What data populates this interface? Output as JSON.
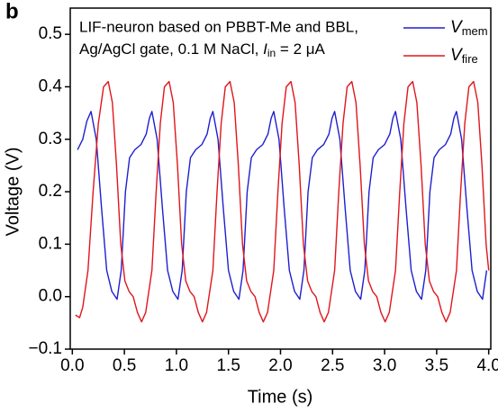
{
  "chart_data": {
    "type": "line",
    "panel_label": "b",
    "annotation": {
      "line1": "LIF-neuron based on PBBT-Me and BBL,",
      "line2": "Ag/AgCl gate, 0.1 M NaCl,",
      "symbol": "I",
      "symbol_sub": "in",
      "rest": "= 2 μA"
    },
    "xlabel": "Time (s)",
    "ylabel": "Voltage (V)",
    "xlim": [
      -0.02,
      4.02
    ],
    "ylim": [
      -0.1,
      0.55
    ],
    "xticks": [
      {
        "value": 0,
        "label": "0.0"
      },
      0.5,
      {
        "value": 1,
        "label": "1.0"
      },
      1.5,
      {
        "value": 2,
        "label": "2.0"
      },
      2.5,
      {
        "value": 3,
        "label": "3.0"
      },
      3.5,
      {
        "value": 4,
        "label": "4.0"
      }
    ],
    "yticks": [
      {
        "value": -0.1,
        "label": "−0.1"
      },
      {
        "value": 0,
        "label": "0.0"
      },
      0.1,
      0.2,
      0.3,
      0.4,
      0.5
    ],
    "legend": "upper right",
    "series": [
      {
        "name": "V",
        "name_sub": "mem",
        "color": "#1f1fd0",
        "x": [
          0.05,
          0.1,
          0.14,
          0.18,
          0.23,
          0.28,
          0.33,
          0.38,
          0.43,
          0.47,
          0.51,
          0.55,
          0.6,
          0.66,
          0.71,
          0.74,
          0.765,
          0.815,
          0.865,
          0.915,
          0.965,
          1.015,
          1.055,
          1.095,
          1.135,
          1.185,
          1.245,
          1.295,
          1.325,
          1.35,
          1.4,
          1.45,
          1.5,
          1.55,
          1.6,
          1.64,
          1.68,
          1.72,
          1.77,
          1.83,
          1.88,
          1.91,
          1.935,
          1.985,
          2.035,
          2.085,
          2.135,
          2.185,
          2.225,
          2.265,
          2.305,
          2.355,
          2.415,
          2.465,
          2.495,
          2.52,
          2.57,
          2.62,
          2.67,
          2.72,
          2.77,
          2.81,
          2.85,
          2.89,
          2.94,
          3.0,
          3.05,
          3.08,
          3.105,
          3.155,
          3.205,
          3.255,
          3.305,
          3.355,
          3.395,
          3.435,
          3.475,
          3.525,
          3.585,
          3.635,
          3.665,
          3.69,
          3.74,
          3.79,
          3.84,
          3.89,
          3.94,
          3.98
        ],
        "values": [
          0.28,
          0.3,
          0.335,
          0.353,
          0.3,
          0.17,
          0.05,
          0.01,
          -0.005,
          0.05,
          0.2,
          0.265,
          0.28,
          0.29,
          0.31,
          0.34,
          0.353,
          0.3,
          0.17,
          0.05,
          0.01,
          -0.005,
          0.05,
          0.2,
          0.265,
          0.28,
          0.29,
          0.31,
          0.34,
          0.353,
          0.3,
          0.17,
          0.05,
          0.01,
          -0.005,
          0.05,
          0.2,
          0.265,
          0.28,
          0.29,
          0.31,
          0.34,
          0.353,
          0.3,
          0.17,
          0.05,
          0.01,
          -0.005,
          0.05,
          0.2,
          0.265,
          0.28,
          0.29,
          0.31,
          0.34,
          0.353,
          0.3,
          0.17,
          0.05,
          0.01,
          -0.005,
          0.05,
          0.2,
          0.265,
          0.28,
          0.29,
          0.31,
          0.34,
          0.353,
          0.3,
          0.17,
          0.05,
          0.01,
          -0.005,
          0.05,
          0.2,
          0.265,
          0.28,
          0.29,
          0.31,
          0.34,
          0.353,
          0.3,
          0.17,
          0.05,
          0.01,
          -0.005,
          0.05
        ]
      },
      {
        "name": "V",
        "name_sub": "fire",
        "color": "#e0161c",
        "x": [
          0.03,
          0.07,
          0.1,
          0.15,
          0.2,
          0.25,
          0.3,
          0.345,
          0.385,
          0.425,
          0.465,
          0.505,
          0.545,
          0.585,
          0.625,
          0.665,
          0.705,
          0.765,
          0.805,
          0.845,
          0.885,
          0.93,
          0.97,
          1.01,
          1.05,
          1.09,
          1.13,
          1.17,
          1.21,
          1.25,
          1.29,
          1.35,
          1.39,
          1.43,
          1.47,
          1.515,
          1.555,
          1.595,
          1.635,
          1.675,
          1.715,
          1.755,
          1.795,
          1.835,
          1.875,
          1.935,
          1.975,
          2.015,
          2.055,
          2.1,
          2.14,
          2.18,
          2.22,
          2.26,
          2.3,
          2.34,
          2.38,
          2.42,
          2.46,
          2.52,
          2.56,
          2.6,
          2.64,
          2.685,
          2.725,
          2.765,
          2.805,
          2.845,
          2.885,
          2.925,
          2.965,
          3.005,
          3.045,
          3.105,
          3.145,
          3.185,
          3.225,
          3.27,
          3.31,
          3.35,
          3.39,
          3.43,
          3.47,
          3.51,
          3.55,
          3.59,
          3.63,
          3.69,
          3.73,
          3.77,
          3.81,
          3.855,
          3.895,
          3.935,
          3.975,
          4.0
        ],
        "values": [
          -0.035,
          -0.04,
          -0.02,
          0.05,
          0.2,
          0.33,
          0.4,
          0.41,
          0.37,
          0.25,
          0.1,
          0.03,
          0.01,
          0.0,
          -0.03,
          -0.048,
          -0.03,
          0.05,
          0.2,
          0.33,
          0.4,
          0.41,
          0.37,
          0.25,
          0.1,
          0.03,
          0.01,
          0.0,
          -0.03,
          -0.048,
          -0.03,
          0.05,
          0.2,
          0.33,
          0.4,
          0.41,
          0.37,
          0.25,
          0.1,
          0.03,
          0.01,
          0.0,
          -0.03,
          -0.048,
          -0.03,
          0.05,
          0.2,
          0.33,
          0.4,
          0.41,
          0.37,
          0.25,
          0.1,
          0.03,
          0.01,
          0.0,
          -0.03,
          -0.048,
          -0.03,
          0.05,
          0.2,
          0.33,
          0.4,
          0.41,
          0.37,
          0.25,
          0.1,
          0.03,
          0.01,
          0.0,
          -0.03,
          -0.048,
          -0.03,
          0.05,
          0.2,
          0.33,
          0.4,
          0.41,
          0.37,
          0.25,
          0.1,
          0.03,
          0.01,
          0.0,
          -0.03,
          -0.048,
          -0.03,
          0.05,
          0.2,
          0.33,
          0.4,
          0.41,
          0.37,
          0.25,
          0.1,
          0.05
        ]
      }
    ]
  }
}
